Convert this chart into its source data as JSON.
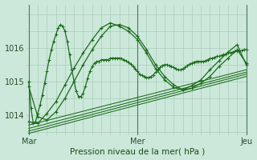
{
  "bg_color": "#cce8da",
  "grid_color": "#aaccbb",
  "line_color": "#1a6b1a",
  "xlabel": "Pression niveau de la mer( hPa )",
  "ylim": [
    1013.4,
    1017.3
  ],
  "xtick_labels": [
    "Mar",
    "Mer",
    "Jeu"
  ],
  "xtick_positions": [
    0,
    48,
    96
  ],
  "ytick_labels": [
    "1014",
    "1015",
    "1016"
  ],
  "ytick_positions": [
    1014,
    1015,
    1016
  ],
  "line_main": [
    1015.0,
    1014.2,
    1013.75,
    1013.8,
    1014.05,
    1014.3,
    1014.6,
    1014.95,
    1015.3,
    1015.65,
    1015.95,
    1016.2,
    1016.4,
    1016.6,
    1016.7,
    1016.65,
    1016.5,
    1016.2,
    1015.8,
    1015.35,
    1015.0,
    1014.7,
    1014.55,
    1014.55,
    1014.65,
    1014.85,
    1015.1,
    1015.3,
    1015.45,
    1015.55,
    1015.6,
    1015.6,
    1015.65,
    1015.65,
    1015.65,
    1015.65,
    1015.7,
    1015.7,
    1015.7,
    1015.7,
    1015.7,
    1015.68,
    1015.65,
    1015.62,
    1015.58,
    1015.52,
    1015.45,
    1015.38,
    1015.3,
    1015.22,
    1015.18,
    1015.15,
    1015.12,
    1015.12,
    1015.15,
    1015.2,
    1015.28,
    1015.35,
    1015.42,
    1015.48,
    1015.5,
    1015.5,
    1015.48,
    1015.45,
    1015.42,
    1015.38,
    1015.35,
    1015.35,
    1015.38,
    1015.42,
    1015.48,
    1015.52,
    1015.55,
    1015.58,
    1015.6,
    1015.6,
    1015.6,
    1015.6,
    1015.62,
    1015.65,
    1015.68,
    1015.7,
    1015.72,
    1015.75,
    1015.75,
    1015.78,
    1015.8,
    1015.82,
    1015.85,
    1015.85,
    1015.88,
    1015.9,
    1015.9,
    1015.92,
    1015.92,
    1015.95,
    1015.95
  ],
  "line_a_x": [
    0,
    4,
    8,
    12,
    16,
    20,
    24,
    28,
    32,
    36,
    40,
    44,
    48,
    52,
    56,
    60,
    64,
    68,
    72,
    76,
    80,
    84,
    88,
    92,
    96
  ],
  "line_a_y": [
    1014.85,
    1013.95,
    1013.85,
    1014.1,
    1014.5,
    1015.0,
    1015.5,
    1015.95,
    1016.35,
    1016.65,
    1016.7,
    1016.6,
    1016.35,
    1015.95,
    1015.5,
    1015.15,
    1014.9,
    1014.75,
    1014.8,
    1014.95,
    1015.15,
    1015.45,
    1015.7,
    1015.95,
    1015.55
  ],
  "line_b_x": [
    0,
    4,
    8,
    12,
    16,
    20,
    24,
    28,
    32,
    36,
    40,
    44,
    48,
    52,
    56,
    60,
    64,
    68,
    72,
    76,
    80,
    84,
    88,
    92,
    96
  ],
  "line_b_y": [
    1013.8,
    1013.75,
    1014.05,
    1014.4,
    1014.9,
    1015.4,
    1015.85,
    1016.25,
    1016.6,
    1016.75,
    1016.65,
    1016.5,
    1016.25,
    1015.85,
    1015.38,
    1015.05,
    1014.82,
    1014.75,
    1014.88,
    1015.05,
    1015.35,
    1015.62,
    1015.88,
    1016.1,
    1015.5
  ],
  "straight_lines": [
    [
      1013.7,
      1015.35
    ],
    [
      1013.6,
      1015.28
    ],
    [
      1013.52,
      1015.22
    ],
    [
      1013.45,
      1015.15
    ]
  ]
}
